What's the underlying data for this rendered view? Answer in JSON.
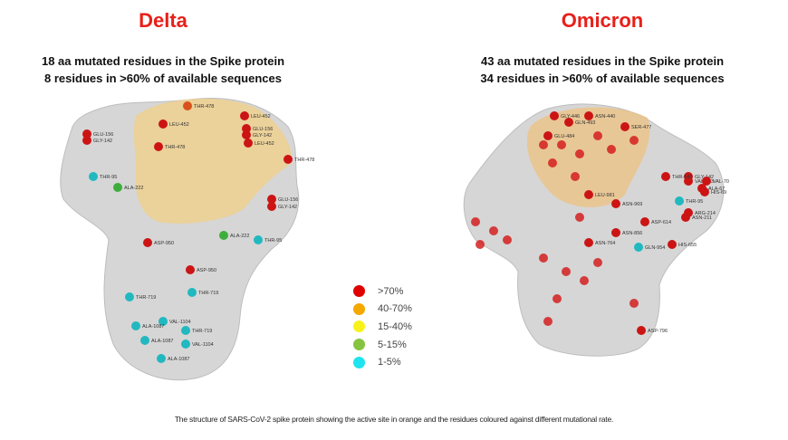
{
  "panels": [
    {
      "title": "Delta",
      "subtitle_line1": "18 aa mutated residues in the Spike protein",
      "subtitle_line2": "8 residues in >60% of available sequences",
      "residue_labels": [
        {
          "label": "GLU-156",
          "cat": 0
        },
        {
          "label": "GLY-142",
          "cat": 0
        },
        {
          "label": "THR-478",
          "cat": 1
        },
        {
          "label": "LEU-452",
          "cat": 0
        },
        {
          "label": "LEU-452",
          "cat": 0
        },
        {
          "label": "GLU-156",
          "cat": 0
        },
        {
          "label": "GLY-142",
          "cat": 0
        },
        {
          "label": "LEU-452",
          "cat": 0
        },
        {
          "label": "THR-478",
          "cat": 0
        },
        {
          "label": "THR-478",
          "cat": 0
        },
        {
          "label": "THR-95",
          "cat": 4
        },
        {
          "label": "ALA-222",
          "cat": 3
        },
        {
          "label": "GLU-156",
          "cat": 0
        },
        {
          "label": "GLY-142",
          "cat": 0
        },
        {
          "label": "ASP-950",
          "cat": 0
        },
        {
          "label": "ALA-222",
          "cat": 3
        },
        {
          "label": "THR-95",
          "cat": 4
        },
        {
          "label": "ASP-950",
          "cat": 0
        },
        {
          "label": "THR-719",
          "cat": 4
        },
        {
          "label": "THR-719",
          "cat": 4
        },
        {
          "label": "VAL-1104",
          "cat": 4
        },
        {
          "label": "ALA-1087",
          "cat": 4
        },
        {
          "label": "THR-719",
          "cat": 4
        },
        {
          "label": "ALA-1087",
          "cat": 4
        },
        {
          "label": "VAL-1104",
          "cat": 4
        },
        {
          "label": "ALA-1087",
          "cat": 4
        }
      ]
    },
    {
      "title": "Omicron",
      "subtitle_line1": "43 aa mutated residues in the Spike protein",
      "subtitle_line2": "34 residues in >60% of available sequences",
      "residue_labels": [
        {
          "label": "GLY-446",
          "cat": 0
        },
        {
          "label": "GLN-493",
          "cat": 0
        },
        {
          "label": "ASN-440",
          "cat": 0
        },
        {
          "label": "GLU-484",
          "cat": 0
        },
        {
          "label": "SER-477",
          "cat": 0
        },
        {
          "label": "GLY-142",
          "cat": 0
        },
        {
          "label": "VAL-143",
          "cat": 0
        },
        {
          "label": "VAL-70",
          "cat": 0
        },
        {
          "label": "ALA-67",
          "cat": 0
        },
        {
          "label": "HIS-69",
          "cat": 0
        },
        {
          "label": "THR-547",
          "cat": 0
        },
        {
          "label": "THR-95",
          "cat": 4
        },
        {
          "label": "ARG-214",
          "cat": 0
        },
        {
          "label": "ASN-211",
          "cat": 0
        },
        {
          "label": "LEU-981",
          "cat": 0
        },
        {
          "label": "ASN-969",
          "cat": 0
        },
        {
          "label": "ASP-614",
          "cat": 0
        },
        {
          "label": "ASN-856",
          "cat": 0
        },
        {
          "label": "ASN-764",
          "cat": 0
        },
        {
          "label": "GLN-954",
          "cat": 4
        },
        {
          "label": "HIS-655",
          "cat": 0
        },
        {
          "label": "ASP-796",
          "cat": 0
        }
      ]
    }
  ],
  "legend": {
    "items": [
      {
        "label": ">70%",
        "color": "#e00000"
      },
      {
        "label": "40-70%",
        "color": "#f5a800"
      },
      {
        "label": "15-40%",
        "color": "#f8f21a"
      },
      {
        "label": "5-15%",
        "color": "#86c440"
      },
      {
        "label": "1-5%",
        "color": "#1ee4ef"
      }
    ]
  },
  "colors": {
    "title": "#e8201a",
    "protein": "#d4d4d4",
    "active_site": "#f2cf86"
  },
  "caption": "The structure of SARS-CoV-2 spike protein showing the active site in orange and the residues coloured against different mutational rate."
}
